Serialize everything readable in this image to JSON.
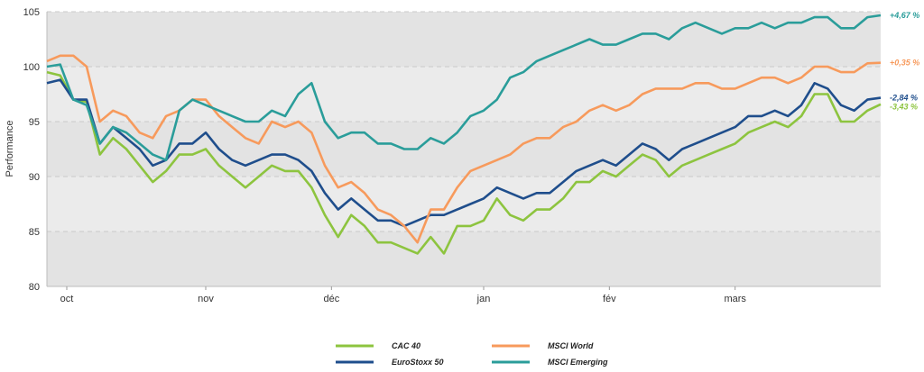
{
  "chart_data": {
    "type": "line",
    "ylabel": "Performance",
    "ylim": [
      80,
      105
    ],
    "yticks": [
      80,
      85,
      90,
      95,
      100,
      105
    ],
    "grid": "horizontal-dashed",
    "legend_position": "bottom",
    "x_tick_labels": [
      {
        "label": "oct",
        "x": 1.5
      },
      {
        "label": "nov",
        "x": 12
      },
      {
        "label": "déc",
        "x": 21.5
      },
      {
        "label": "jan",
        "x": 33
      },
      {
        "label": "fév",
        "x": 42.5
      },
      {
        "label": "mars",
        "x": 52
      }
    ],
    "x": [
      0,
      1,
      2,
      3,
      4,
      5,
      6,
      7,
      8,
      9,
      10,
      11,
      12,
      13,
      14,
      15,
      16,
      17,
      18,
      19,
      20,
      21,
      22,
      23,
      24,
      25,
      26,
      27,
      28,
      29,
      30,
      31,
      32,
      33,
      34,
      35,
      36,
      37,
      38,
      39,
      40,
      41,
      42,
      43,
      44,
      45,
      46,
      47,
      48,
      49,
      50,
      51,
      52,
      53,
      54,
      55,
      56,
      57,
      58,
      59,
      60,
      61,
      62,
      63
    ],
    "series": [
      {
        "name": "CAC 40",
        "color": "#8dc43f",
        "end_label": "-3,43 %",
        "values": [
          99.5,
          99.2,
          97.0,
          96.8,
          92.0,
          93.5,
          92.5,
          91.0,
          89.5,
          90.5,
          92.0,
          92.0,
          92.5,
          91.0,
          90.0,
          89.0,
          90.0,
          91.0,
          90.5,
          90.5,
          89.0,
          86.5,
          84.5,
          86.5,
          85.5,
          84.0,
          84.0,
          83.5,
          83.0,
          84.5,
          83.0,
          85.5,
          85.5,
          86.0,
          88.0,
          86.5,
          86.0,
          87.0,
          87.0,
          88.0,
          89.5,
          89.5,
          90.5,
          90.0,
          91.0,
          92.0,
          91.5,
          90.0,
          91.0,
          91.5,
          92.0,
          92.5,
          93.0,
          94.0,
          94.5,
          95.0,
          94.5,
          95.5,
          97.5,
          97.5,
          95.0,
          95.0,
          96.0,
          96.57
        ]
      },
      {
        "name": "EuroStoxx 50",
        "color": "#1f4e8c",
        "end_label": "-2,84 %",
        "values": [
          98.5,
          98.8,
          97.0,
          97.0,
          93.0,
          94.5,
          93.5,
          92.5,
          91.0,
          91.5,
          93.0,
          93.0,
          94.0,
          92.5,
          91.5,
          91.0,
          91.5,
          92.0,
          92.0,
          91.5,
          90.5,
          88.5,
          87.0,
          88.0,
          87.0,
          86.0,
          86.0,
          85.5,
          86.0,
          86.5,
          86.5,
          87.0,
          87.5,
          88.0,
          89.0,
          88.5,
          88.0,
          88.5,
          88.5,
          89.5,
          90.5,
          91.0,
          91.5,
          91.0,
          92.0,
          93.0,
          92.5,
          91.5,
          92.5,
          93.0,
          93.5,
          94.0,
          94.5,
          95.5,
          95.5,
          96.0,
          95.5,
          96.5,
          98.5,
          98.0,
          96.5,
          96.0,
          97.0,
          97.16
        ]
      },
      {
        "name": "MSCI World",
        "color": "#f79a5c",
        "end_label": "+0,35 %",
        "values": [
          100.5,
          101.0,
          101.0,
          100.0,
          95.0,
          96.0,
          95.5,
          94.0,
          93.5,
          95.5,
          96.0,
          97.0,
          97.0,
          95.5,
          94.5,
          93.5,
          93.0,
          95.0,
          94.5,
          95.0,
          94.0,
          91.0,
          89.0,
          89.5,
          88.5,
          87.0,
          86.5,
          85.5,
          84.0,
          87.0,
          87.0,
          89.0,
          90.5,
          91.0,
          91.5,
          92.0,
          93.0,
          93.5,
          93.5,
          94.5,
          95.0,
          96.0,
          96.5,
          96.0,
          96.5,
          97.5,
          98.0,
          98.0,
          98.0,
          98.5,
          98.5,
          98.0,
          98.0,
          98.5,
          99.0,
          99.0,
          98.5,
          99.0,
          100.0,
          100.0,
          99.5,
          99.5,
          100.3,
          100.35
        ]
      },
      {
        "name": "MSCI Emerging",
        "color": "#2a9d9a",
        "end_label": "+4,67 %",
        "values": [
          100.0,
          100.2,
          97.0,
          96.5,
          93.0,
          94.5,
          94.0,
          93.0,
          92.0,
          91.5,
          96.0,
          97.0,
          96.5,
          96.0,
          95.5,
          95.0,
          95.0,
          96.0,
          95.5,
          97.5,
          98.5,
          95.0,
          93.5,
          94.0,
          94.0,
          93.0,
          93.0,
          92.5,
          92.5,
          93.5,
          93.0,
          94.0,
          95.5,
          96.0,
          97.0,
          99.0,
          99.5,
          100.5,
          101.0,
          101.5,
          102.0,
          102.5,
          102.0,
          102.0,
          102.5,
          103.0,
          103.0,
          102.5,
          103.5,
          104.0,
          103.5,
          103.0,
          103.5,
          103.5,
          104.0,
          103.5,
          104.0,
          104.0,
          104.5,
          104.5,
          103.5,
          103.5,
          104.5,
          104.67
        ]
      }
    ]
  }
}
